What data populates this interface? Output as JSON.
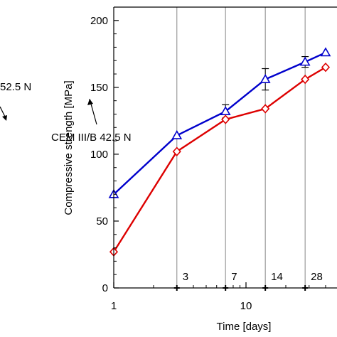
{
  "chart_data": {
    "type": "line",
    "xscale": "log",
    "xlim": [
      1,
      40
    ],
    "ylim": [
      0,
      210
    ],
    "xlabel": "Time [days]",
    "ylabel": "Compressive strength [MPa]",
    "x_ticks": [
      "1",
      "10"
    ],
    "y_ticks": [
      "0",
      "50",
      "100",
      "150",
      "200"
    ],
    "grid": "vertical lines at 3, 7, 14, 28 days",
    "age_markers": [
      {
        "x": 3,
        "label": "3"
      },
      {
        "x": 7,
        "label": "7"
      },
      {
        "x": 14,
        "label": "14"
      },
      {
        "x": 28,
        "label": "28"
      }
    ],
    "series": [
      {
        "color": "#0000cc",
        "marker": "triangle",
        "x": [
          1,
          3,
          7,
          14,
          28,
          40
        ],
        "y": [
          70,
          114,
          132,
          156,
          169,
          176
        ],
        "error": [
          0,
          0,
          5,
          8,
          4,
          0
        ]
      },
      {
        "color": "#dd0000",
        "marker": "diamond",
        "x": [
          1,
          3,
          7,
          14,
          28,
          40
        ],
        "y": [
          27,
          102,
          126,
          134,
          156,
          165
        ],
        "error": [
          0,
          0,
          0,
          0,
          0,
          0
        ]
      }
    ],
    "annotations": [
      {
        "text": "CEM III/B 42.5 N"
      },
      {
        "text": "52.5 N"
      }
    ]
  }
}
